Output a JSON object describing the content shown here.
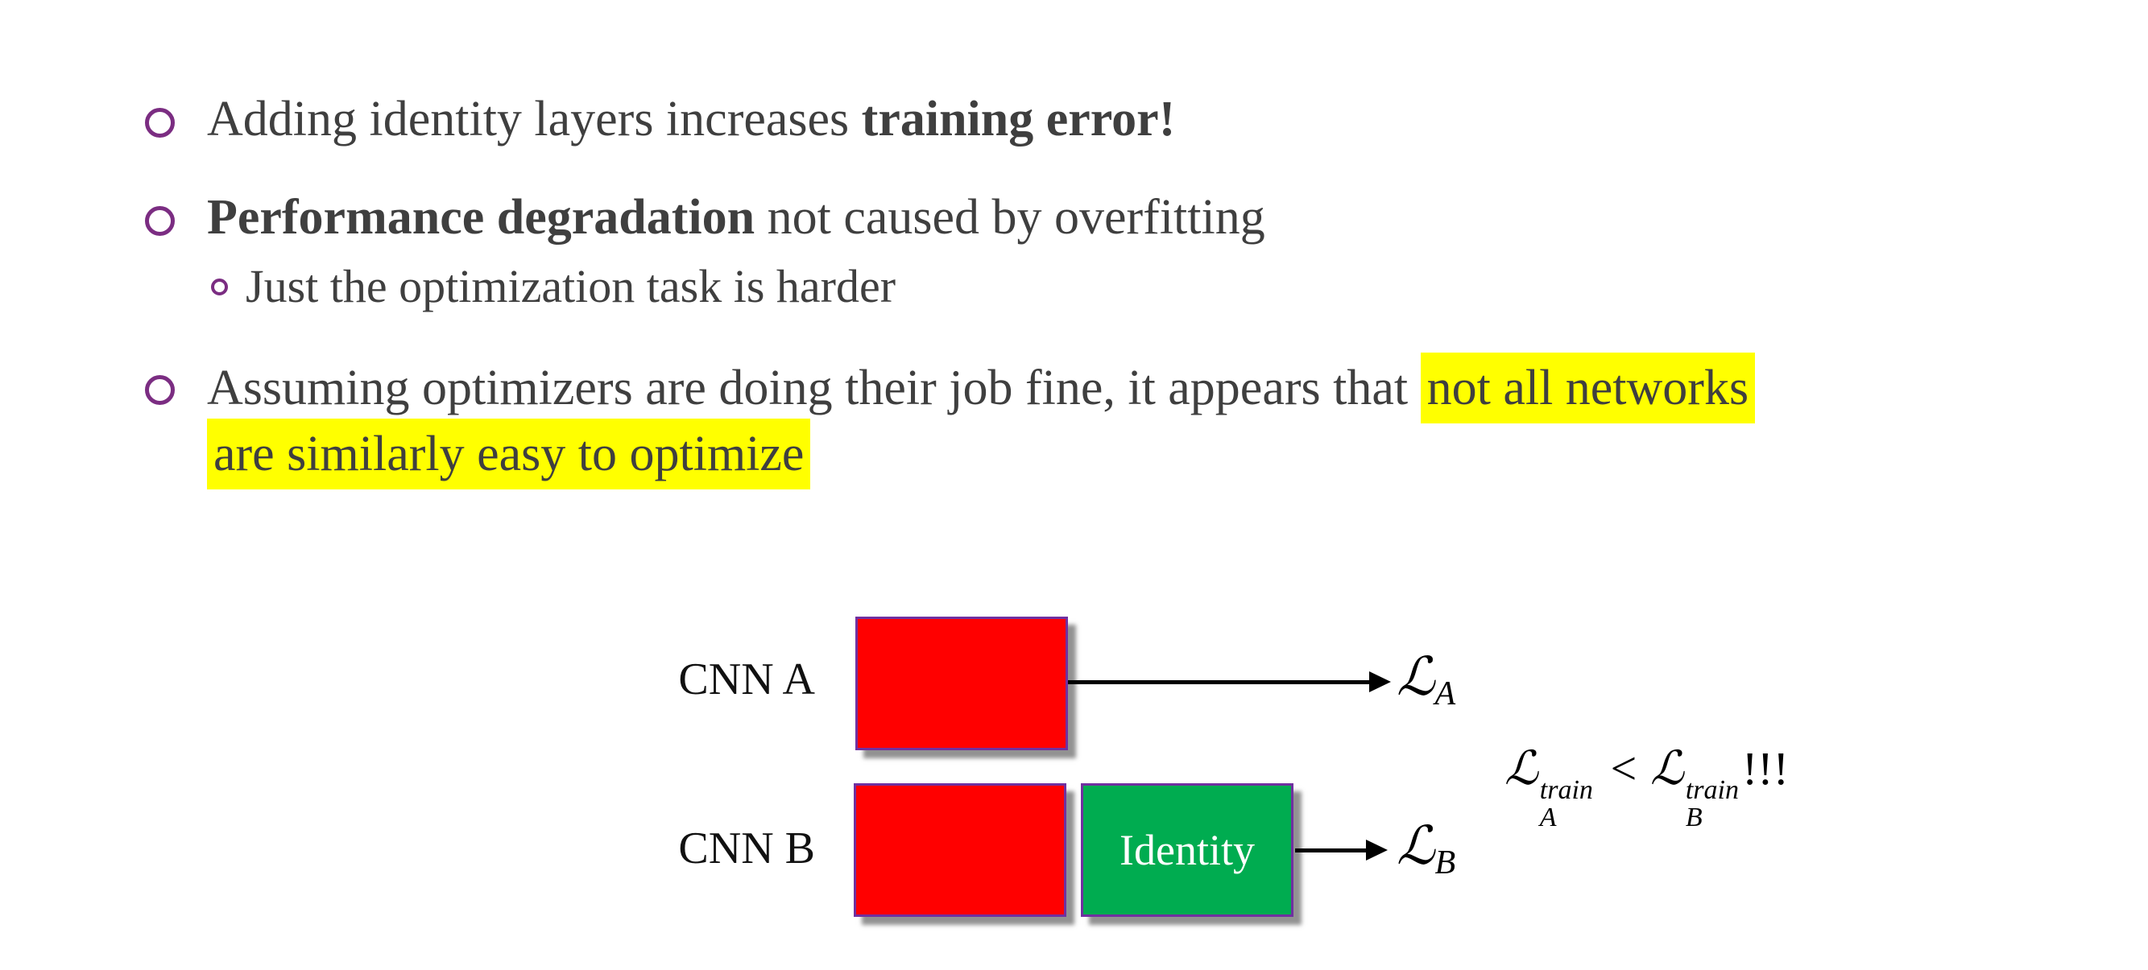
{
  "slide": {
    "bullet1": {
      "pre": "Adding identity layers increases ",
      "bold": "training error!"
    },
    "bullet2": {
      "bold": "Performance degradation",
      "post": " not caused by overfitting"
    },
    "sub_bullet": "Just the optimization task is harder",
    "bullet3": {
      "pre": "Assuming optimizers are doing their job fine, it appears that ",
      "hl_line1": "not all networks",
      "hl_line2": "are similarly easy to optimize"
    }
  },
  "diagram": {
    "row_a": {
      "label": "CNN A",
      "loss_base": "ℒ",
      "loss_sub": "A"
    },
    "row_b": {
      "label": "CNN B",
      "box_label": "Identity",
      "loss_base": "ℒ",
      "loss_sub": "B"
    },
    "formula": {
      "lhs_base": "ℒ",
      "lhs_sup": "train",
      "lhs_sub": "A",
      "relation": "<",
      "rhs_base": "ℒ",
      "rhs_sup": "train",
      "rhs_sub": "B",
      "suffix": "!!!"
    }
  },
  "colors": {
    "text": "#3f3f3f",
    "bullet_outline": "#7b2d82",
    "highlight": "#ffff00",
    "box_red": "#ff0000",
    "box_green": "#00ac50",
    "box_border": "#7030a0",
    "identity_text": "#ffffff",
    "arrow": "#000000"
  }
}
